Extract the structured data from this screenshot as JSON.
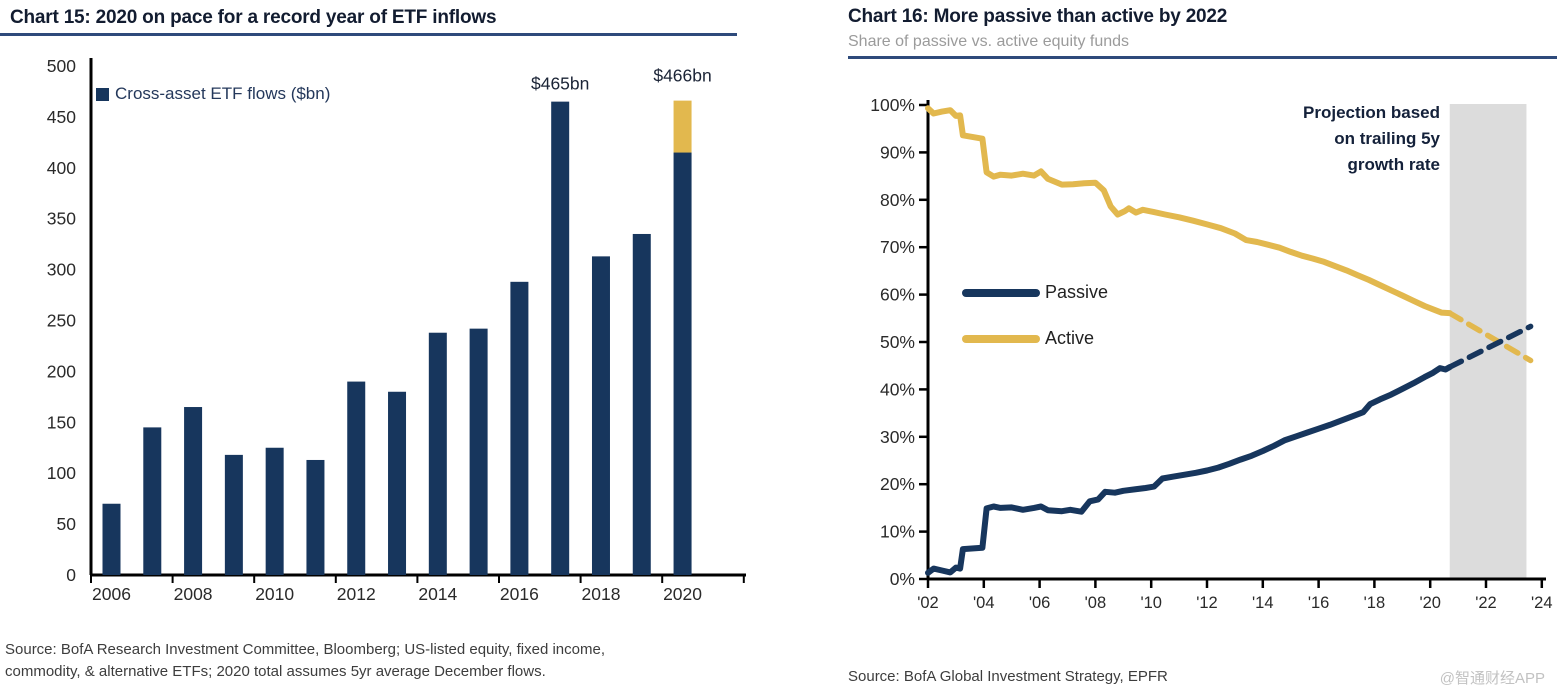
{
  "colors": {
    "navy": "#17365D",
    "gold": "#E2B84E",
    "band": "#DCDCDC",
    "title": "#121C30",
    "rule": "#2E4A7B",
    "subtitle_gray": "#9B9B9B",
    "axis_black": "#000000",
    "tick_label": "#2A2A2A",
    "source_gray": "#3D3D3D",
    "watermark_gray": "#C2C2C2"
  },
  "left_panel": {
    "title": "Chart 15: 2020 on pace for a record year of ETF inflows",
    "legend_label": "Cross-asset ETF flows ($bn)",
    "source_lines": [
      "Source: BofA Research Investment Committee, Bloomberg; US-listed equity, fixed income,",
      "commodity, & alternative ETFs; 2020 total assumes 5yr average December flows."
    ]
  },
  "right_panel": {
    "title": "Chart 16: More passive than active by 2022",
    "subtitle": "Share of passive vs. active equity funds",
    "annotation_lines": [
      "Projection based",
      "on trailing 5y",
      "growth rate"
    ],
    "legend": [
      {
        "label": "Passive",
        "color": "#17365D"
      },
      {
        "label": "Active",
        "color": "#E2B84E"
      }
    ],
    "source": "Source: BofA Global Investment Strategy, EPFR",
    "watermark": "@智通财经APP"
  },
  "chart_data": [
    {
      "type": "bar",
      "title": "Chart 15: 2020 on pace for a record year of ETF inflows",
      "legend": "Cross-asset ETF flows ($bn)",
      "stacked": true,
      "categories": [
        2006,
        2007,
        2008,
        2009,
        2010,
        2011,
        2012,
        2013,
        2014,
        2015,
        2016,
        2017,
        2018,
        2019,
        2020
      ],
      "series": [
        {
          "name": "Cross-asset ETF flows ($bn)",
          "color": "#17365D",
          "values": [
            70,
            145,
            165,
            118,
            125,
            113,
            190,
            180,
            238,
            242,
            288,
            465,
            313,
            335,
            415
          ]
        },
        {
          "name": "2020 assumed December flows (5yr avg)",
          "color": "#E2B84E",
          "values": [
            0,
            0,
            0,
            0,
            0,
            0,
            0,
            0,
            0,
            0,
            0,
            0,
            0,
            0,
            51
          ]
        }
      ],
      "ylabel": "",
      "xlabel": "",
      "ylim": [
        0,
        500
      ],
      "ytick_step": 50,
      "ytick_labels": [
        "0",
        "50",
        "100",
        "150",
        "200",
        "250",
        "300",
        "350",
        "400",
        "450",
        "500"
      ],
      "xtick_labels": [
        "2006",
        "2008",
        "2010",
        "2012",
        "2014",
        "2016",
        "2018",
        "2020"
      ],
      "data_labels": [
        {
          "category": 2017,
          "text": "$465bn",
          "total": 465
        },
        {
          "category": 2020,
          "text": "$466bn",
          "total": 466
        }
      ],
      "grid": false,
      "legend_position": "top-left-inside"
    },
    {
      "type": "line",
      "title": "Chart 16: More passive than active by 2022",
      "subtitle": "Share of passive vs. active equity funds",
      "ylim": [
        0,
        100
      ],
      "ytick_step": 10,
      "ytick_labels": [
        "0%",
        "10%",
        "20%",
        "30%",
        "40%",
        "50%",
        "60%",
        "70%",
        "80%",
        "90%",
        "100%"
      ],
      "xlim": [
        2002,
        2024
      ],
      "xticks": [
        2002,
        2004,
        2006,
        2008,
        2010,
        2012,
        2014,
        2016,
        2018,
        2020,
        2022,
        2024
      ],
      "xtick_labels": [
        "'02",
        "'04",
        "'06",
        "'08",
        "'10",
        "'12",
        "'14",
        "'16",
        "'18",
        "'20",
        "'22",
        "'24"
      ],
      "grid": false,
      "legend_position": "mid-left-inside",
      "annotation": "Projection based on trailing 5y growth rate",
      "projection_band": {
        "start": 2020.7,
        "end": 2023.45,
        "color": "#DCDCDC"
      },
      "series": [
        {
          "name": "Passive",
          "color": "#17365D",
          "solid": [
            [
              2002.0,
              1.3
            ],
            [
              2002.2,
              2.2
            ],
            [
              2002.5,
              1.8
            ],
            [
              2002.8,
              1.4
            ],
            [
              2003.0,
              2.4
            ],
            [
              2003.15,
              2.2
            ],
            [
              2003.25,
              6.3
            ],
            [
              2003.95,
              6.6
            ],
            [
              2004.1,
              14.9
            ],
            [
              2004.35,
              15.3
            ],
            [
              2004.6,
              15.0
            ],
            [
              2005.0,
              15.1
            ],
            [
              2005.4,
              14.6
            ],
            [
              2005.8,
              15.0
            ],
            [
              2006.05,
              15.3
            ],
            [
              2006.3,
              14.5
            ],
            [
              2006.8,
              14.3
            ],
            [
              2007.1,
              14.6
            ],
            [
              2007.5,
              14.2
            ],
            [
              2007.8,
              16.4
            ],
            [
              2008.1,
              16.8
            ],
            [
              2008.35,
              18.4
            ],
            [
              2008.7,
              18.2
            ],
            [
              2009.0,
              18.6
            ],
            [
              2009.4,
              18.9
            ],
            [
              2009.8,
              19.2
            ],
            [
              2010.1,
              19.5
            ],
            [
              2010.4,
              21.2
            ],
            [
              2010.8,
              21.6
            ],
            [
              2011.2,
              22.0
            ],
            [
              2011.6,
              22.4
            ],
            [
              2012.0,
              22.9
            ],
            [
              2012.4,
              23.5
            ],
            [
              2012.8,
              24.3
            ],
            [
              2013.2,
              25.2
            ],
            [
              2013.6,
              26.0
            ],
            [
              2014.0,
              27.0
            ],
            [
              2014.4,
              28.1
            ],
            [
              2014.8,
              29.3
            ],
            [
              2015.2,
              30.1
            ],
            [
              2015.6,
              30.9
            ],
            [
              2016.0,
              31.7
            ],
            [
              2016.4,
              32.5
            ],
            [
              2016.8,
              33.4
            ],
            [
              2017.2,
              34.3
            ],
            [
              2017.6,
              35.2
            ],
            [
              2017.85,
              36.9
            ],
            [
              2018.2,
              37.9
            ],
            [
              2018.6,
              38.9
            ],
            [
              2019.0,
              40.1
            ],
            [
              2019.4,
              41.3
            ],
            [
              2019.8,
              42.6
            ],
            [
              2020.1,
              43.5
            ],
            [
              2020.35,
              44.5
            ],
            [
              2020.55,
              44.2
            ],
            [
              2020.7,
              44.7
            ]
          ],
          "projection": [
            [
              2020.7,
              44.7
            ],
            [
              2023.6,
              53.3
            ]
          ]
        },
        {
          "name": "Active",
          "color": "#E2B84E",
          "solid": [
            [
              2002.0,
              99.3
            ],
            [
              2002.2,
              98.2
            ],
            [
              2002.5,
              98.6
            ],
            [
              2002.8,
              98.9
            ],
            [
              2003.0,
              97.7
            ],
            [
              2003.15,
              97.8
            ],
            [
              2003.25,
              93.6
            ],
            [
              2003.95,
              92.9
            ],
            [
              2004.1,
              85.8
            ],
            [
              2004.35,
              84.9
            ],
            [
              2004.6,
              85.3
            ],
            [
              2005.0,
              85.1
            ],
            [
              2005.4,
              85.5
            ],
            [
              2005.8,
              85.1
            ],
            [
              2006.05,
              86.0
            ],
            [
              2006.3,
              84.4
            ],
            [
              2006.8,
              83.2
            ],
            [
              2007.2,
              83.3
            ],
            [
              2007.6,
              83.5
            ],
            [
              2008.0,
              83.6
            ],
            [
              2008.3,
              82.0
            ],
            [
              2008.55,
              78.6
            ],
            [
              2008.8,
              76.9
            ],
            [
              2009.05,
              77.6
            ],
            [
              2009.2,
              78.2
            ],
            [
              2009.45,
              77.3
            ],
            [
              2009.7,
              77.9
            ],
            [
              2010.1,
              77.4
            ],
            [
              2010.5,
              76.9
            ],
            [
              2011.0,
              76.3
            ],
            [
              2011.5,
              75.6
            ],
            [
              2012.0,
              74.8
            ],
            [
              2012.5,
              74.0
            ],
            [
              2013.0,
              72.9
            ],
            [
              2013.4,
              71.5
            ],
            [
              2013.8,
              71.1
            ],
            [
              2014.2,
              70.5
            ],
            [
              2014.6,
              69.9
            ],
            [
              2015.0,
              69.0
            ],
            [
              2015.4,
              68.2
            ],
            [
              2015.8,
              67.6
            ],
            [
              2016.2,
              66.9
            ],
            [
              2016.6,
              66.0
            ],
            [
              2017.0,
              65.1
            ],
            [
              2017.4,
              64.1
            ],
            [
              2017.8,
              63.1
            ],
            [
              2018.2,
              62.0
            ],
            [
              2018.6,
              60.9
            ],
            [
              2019.0,
              59.8
            ],
            [
              2019.4,
              58.7
            ],
            [
              2019.8,
              57.6
            ],
            [
              2020.1,
              56.9
            ],
            [
              2020.4,
              56.2
            ],
            [
              2020.7,
              56.1
            ]
          ],
          "projection": [
            [
              2020.7,
              56.1
            ],
            [
              2023.6,
              46.1
            ]
          ]
        }
      ]
    }
  ]
}
